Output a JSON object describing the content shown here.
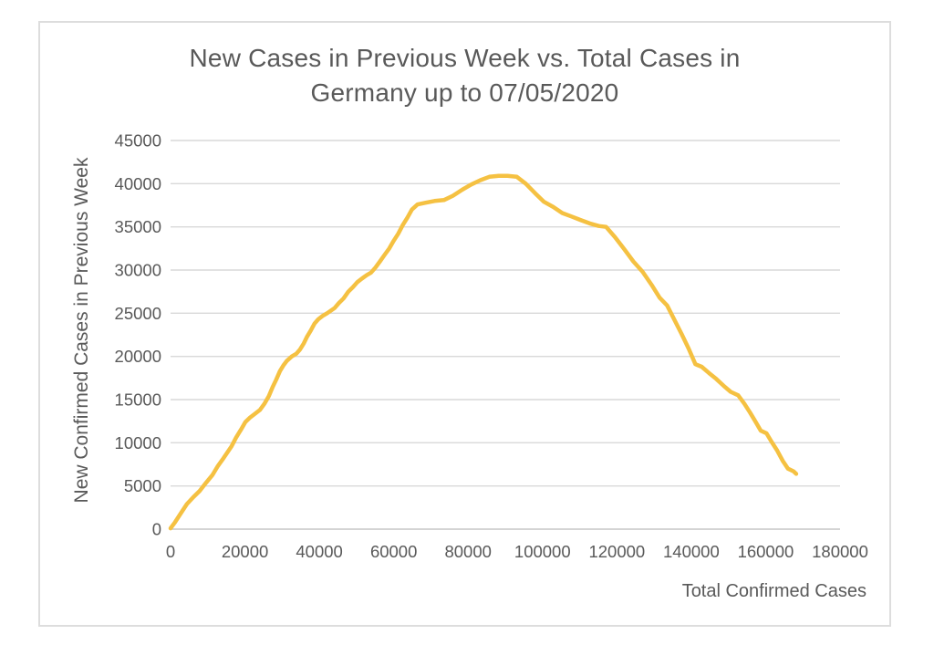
{
  "chart_data": {
    "type": "line",
    "title": "New Cases in Previous Week vs. Total Cases in Germany up to 07/05/2020",
    "title_lines": [
      "New Cases in Previous Week vs. Total Cases in",
      "Germany up to 07/05/2020"
    ],
    "xlabel": "Total Confirmed Cases",
    "ylabel": "New Confirmed Cases in Previous Week",
    "xlim": [
      0,
      180000
    ],
    "ylim": [
      0,
      45000
    ],
    "xticks": [
      0,
      20000,
      40000,
      60000,
      80000,
      100000,
      120000,
      140000,
      160000,
      180000
    ],
    "yticks": [
      0,
      5000,
      10000,
      15000,
      20000,
      25000,
      30000,
      35000,
      40000,
      45000
    ],
    "grid": "horizontal",
    "legend": "none",
    "series": [
      {
        "name": "New cases in previous week",
        "points": [
          [
            0,
            100
          ],
          [
            1200,
            800
          ],
          [
            2700,
            1800
          ],
          [
            4400,
            2900
          ],
          [
            6100,
            3700
          ],
          [
            7800,
            4400
          ],
          [
            9600,
            5400
          ],
          [
            11300,
            6300
          ],
          [
            12700,
            7300
          ],
          [
            14200,
            8200
          ],
          [
            16400,
            9600
          ],
          [
            17600,
            10600
          ],
          [
            18900,
            11500
          ],
          [
            20100,
            12400
          ],
          [
            21300,
            12900
          ],
          [
            22500,
            13300
          ],
          [
            24000,
            13800
          ],
          [
            25200,
            14500
          ],
          [
            26400,
            15400
          ],
          [
            27400,
            16400
          ],
          [
            28400,
            17300
          ],
          [
            29400,
            18300
          ],
          [
            30400,
            19000
          ],
          [
            31300,
            19500
          ],
          [
            32600,
            20000
          ],
          [
            33800,
            20300
          ],
          [
            34800,
            20800
          ],
          [
            35800,
            21500
          ],
          [
            36700,
            22300
          ],
          [
            37700,
            23000
          ],
          [
            38700,
            23800
          ],
          [
            39700,
            24300
          ],
          [
            40900,
            24700
          ],
          [
            42100,
            25000
          ],
          [
            44100,
            25600
          ],
          [
            45300,
            26200
          ],
          [
            46500,
            26700
          ],
          [
            47800,
            27500
          ],
          [
            49000,
            28000
          ],
          [
            50200,
            28600
          ],
          [
            51400,
            29000
          ],
          [
            52700,
            29400
          ],
          [
            53900,
            29700
          ],
          [
            55100,
            30300
          ],
          [
            56300,
            31000
          ],
          [
            57600,
            31800
          ],
          [
            58800,
            32500
          ],
          [
            60000,
            33400
          ],
          [
            61200,
            34200
          ],
          [
            62400,
            35200
          ],
          [
            63700,
            36100
          ],
          [
            64900,
            37000
          ],
          [
            66400,
            37600
          ],
          [
            68600,
            37800
          ],
          [
            71000,
            38000
          ],
          [
            73500,
            38100
          ],
          [
            75900,
            38600
          ],
          [
            78400,
            39300
          ],
          [
            80800,
            39900
          ],
          [
            83300,
            40400
          ],
          [
            85700,
            40800
          ],
          [
            88200,
            40900
          ],
          [
            90600,
            40900
          ],
          [
            93100,
            40800
          ],
          [
            95500,
            40000
          ],
          [
            98000,
            38900
          ],
          [
            100400,
            37900
          ],
          [
            102900,
            37300
          ],
          [
            105300,
            36600
          ],
          [
            107800,
            36200
          ],
          [
            110200,
            35800
          ],
          [
            112700,
            35400
          ],
          [
            115100,
            35100
          ],
          [
            117100,
            35000
          ],
          [
            119500,
            33800
          ],
          [
            122000,
            32400
          ],
          [
            124400,
            31000
          ],
          [
            126900,
            29800
          ],
          [
            129300,
            28300
          ],
          [
            131500,
            26800
          ],
          [
            133500,
            25900
          ],
          [
            135400,
            24300
          ],
          [
            137400,
            22600
          ],
          [
            139300,
            20900
          ],
          [
            141100,
            19100
          ],
          [
            142800,
            18800
          ],
          [
            144700,
            18100
          ],
          [
            146700,
            17400
          ],
          [
            148700,
            16600
          ],
          [
            150600,
            15900
          ],
          [
            152600,
            15500
          ],
          [
            154300,
            14500
          ],
          [
            155800,
            13500
          ],
          [
            157200,
            12500
          ],
          [
            158700,
            11400
          ],
          [
            160200,
            11100
          ],
          [
            161600,
            10100
          ],
          [
            163100,
            9100
          ],
          [
            164600,
            7900
          ],
          [
            166000,
            7000
          ],
          [
            167500,
            6700
          ],
          [
            168200,
            6400
          ]
        ]
      }
    ]
  },
  "colors": {
    "background": "#FFFFFF",
    "frame_border": "#DDDDDD",
    "gridline": "#D9D9D9",
    "axis_line": "#C6C6C6",
    "text": "#595959",
    "line": "#F5C142"
  }
}
